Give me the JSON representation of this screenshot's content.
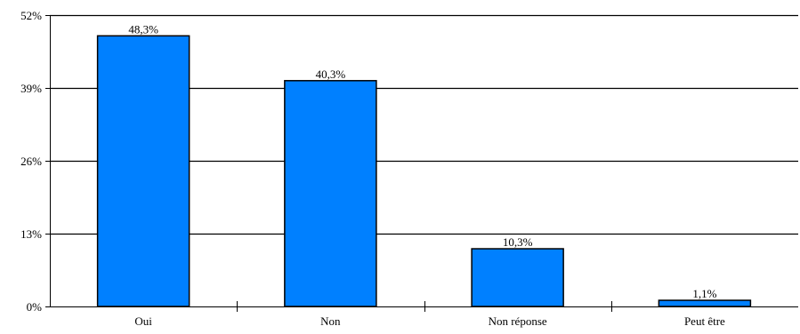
{
  "chart_data": {
    "type": "bar",
    "categories": [
      "Oui",
      "Non",
      "Non réponse",
      "Peut être"
    ],
    "values": [
      48.3,
      40.3,
      10.3,
      1.1
    ],
    "value_labels": [
      "48,3%",
      "40,3%",
      "10,3%",
      "1,1%"
    ],
    "yticks": [
      0,
      13,
      26,
      39,
      52
    ],
    "ytick_labels": [
      "0%",
      "13%",
      "26%",
      "39%",
      "52%"
    ],
    "ylim": [
      0,
      52
    ],
    "grid": true,
    "legend": "none",
    "title": "",
    "xlabel": "",
    "ylabel": "",
    "colors": {
      "bar_fill": "#0080ff",
      "bar_stroke": "#000000",
      "grid": "#000000",
      "axis": "#000000"
    }
  }
}
